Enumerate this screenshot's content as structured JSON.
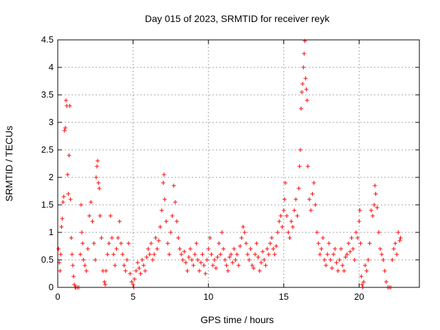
{
  "chart_data": {
    "type": "scatter",
    "title": "Day 015 of 2023, SRMTID for receiver reyk",
    "xlabel": "GPS time / hours",
    "ylabel": "SRMTID / TECUs",
    "xlim": [
      0,
      24
    ],
    "ylim": [
      0,
      4.5
    ],
    "xticks": [
      0,
      5,
      10,
      15,
      20
    ],
    "xtick_labels": [
      "0",
      "5",
      "10",
      "15",
      "20"
    ],
    "yticks": [
      0,
      0.5,
      1,
      1.5,
      2,
      2.5,
      3,
      3.5,
      4,
      4.5
    ],
    "ytick_labels": [
      "0",
      "0.5",
      "1",
      "1.5",
      "2",
      "2.5",
      "3",
      "3.5",
      "4",
      "4.5"
    ],
    "grid": true,
    "marker": "+",
    "color": "#ff0000",
    "series": [
      {
        "name": "reyk",
        "points": [
          [
            0.05,
            0.7
          ],
          [
            0.1,
            0.45
          ],
          [
            0.15,
            0.3
          ],
          [
            0.2,
            0.6
          ],
          [
            0.25,
            1.1
          ],
          [
            0.3,
            1.25
          ],
          [
            0.35,
            1.55
          ],
          [
            0.4,
            1.65
          ],
          [
            0.45,
            2.85
          ],
          [
            0.5,
            2.9
          ],
          [
            0.55,
            3.4
          ],
          [
            0.6,
            3.3
          ],
          [
            0.65,
            2.05
          ],
          [
            0.7,
            1.7
          ],
          [
            0.75,
            2.4
          ],
          [
            0.8,
            3.3
          ],
          [
            0.85,
            1.6
          ],
          [
            0.9,
            0.9
          ],
          [
            0.95,
            0.6
          ],
          [
            1.0,
            0.4
          ],
          [
            1.05,
            0.2
          ],
          [
            1.1,
            0.05
          ],
          [
            1.15,
            0.0
          ],
          [
            1.2,
            0.0
          ],
          [
            1.3,
            0.0
          ],
          [
            1.4,
            0.0
          ],
          [
            1.5,
            0.6
          ],
          [
            1.55,
            1.5
          ],
          [
            1.6,
            1.0
          ],
          [
            1.65,
            0.8
          ],
          [
            1.7,
            0.5
          ],
          [
            1.8,
            0.4
          ],
          [
            1.9,
            0.3
          ],
          [
            2.0,
            0.7
          ],
          [
            2.1,
            1.3
          ],
          [
            2.2,
            1.55
          ],
          [
            2.3,
            1.2
          ],
          [
            2.4,
            0.8
          ],
          [
            2.5,
            0.5
          ],
          [
            2.55,
            2.0
          ],
          [
            2.6,
            2.2
          ],
          [
            2.65,
            2.3
          ],
          [
            2.7,
            1.9
          ],
          [
            2.75,
            1.8
          ],
          [
            2.8,
            1.3
          ],
          [
            2.9,
            0.9
          ],
          [
            3.0,
            0.3
          ],
          [
            3.1,
            0.1
          ],
          [
            3.15,
            0.05
          ],
          [
            3.2,
            0.3
          ],
          [
            3.3,
            0.6
          ],
          [
            3.4,
            0.8
          ],
          [
            3.5,
            1.3
          ],
          [
            3.6,
            0.9
          ],
          [
            3.7,
            0.6
          ],
          [
            3.8,
            0.4
          ],
          [
            3.9,
            0.7
          ],
          [
            4.0,
            0.9
          ],
          [
            4.1,
            1.2
          ],
          [
            4.2,
            0.8
          ],
          [
            4.3,
            0.6
          ],
          [
            4.4,
            0.4
          ],
          [
            4.5,
            0.3
          ],
          [
            4.6,
            0.5
          ],
          [
            4.7,
            0.8
          ],
          [
            4.8,
            0.25
          ],
          [
            4.9,
            0.1
          ],
          [
            5.0,
            0.05
          ],
          [
            5.05,
            0.0
          ],
          [
            5.1,
            0.15
          ],
          [
            5.2,
            0.3
          ],
          [
            5.3,
            0.45
          ],
          [
            5.4,
            0.35
          ],
          [
            5.5,
            0.25
          ],
          [
            5.6,
            0.5
          ],
          [
            5.7,
            0.4
          ],
          [
            5.8,
            0.3
          ],
          [
            5.9,
            0.55
          ],
          [
            6.0,
            0.7
          ],
          [
            6.1,
            0.6
          ],
          [
            6.2,
            0.8
          ],
          [
            6.3,
            0.5
          ],
          [
            6.4,
            0.6
          ],
          [
            6.5,
            0.9
          ],
          [
            6.6,
            0.7
          ],
          [
            6.7,
            0.85
          ],
          [
            6.8,
            1.1
          ],
          [
            6.9,
            1.4
          ],
          [
            7.0,
            1.9
          ],
          [
            7.05,
            2.05
          ],
          [
            7.1,
            1.6
          ],
          [
            7.2,
            1.2
          ],
          [
            7.3,
            0.8
          ],
          [
            7.4,
            0.6
          ],
          [
            7.5,
            1.0
          ],
          [
            7.6,
            1.3
          ],
          [
            7.7,
            1.85
          ],
          [
            7.8,
            1.55
          ],
          [
            7.9,
            1.2
          ],
          [
            8.0,
            0.9
          ],
          [
            8.1,
            0.7
          ],
          [
            8.2,
            0.6
          ],
          [
            8.3,
            0.5
          ],
          [
            8.4,
            0.65
          ],
          [
            8.5,
            0.45
          ],
          [
            8.6,
            0.3
          ],
          [
            8.7,
            0.55
          ],
          [
            8.8,
            0.7
          ],
          [
            8.9,
            0.5
          ],
          [
            9.0,
            0.4
          ],
          [
            9.1,
            0.6
          ],
          [
            9.2,
            0.8
          ],
          [
            9.3,
            0.5
          ],
          [
            9.4,
            0.3
          ],
          [
            9.5,
            0.45
          ],
          [
            9.6,
            0.6
          ],
          [
            9.7,
            0.4
          ],
          [
            9.8,
            0.25
          ],
          [
            9.9,
            0.5
          ],
          [
            10.0,
            0.7
          ],
          [
            10.1,
            0.9
          ],
          [
            10.2,
            0.6
          ],
          [
            10.3,
            0.4
          ],
          [
            10.4,
            0.5
          ],
          [
            10.5,
            0.35
          ],
          [
            10.6,
            0.55
          ],
          [
            10.7,
            0.8
          ],
          [
            10.8,
            0.6
          ],
          [
            10.9,
            1.0
          ],
          [
            11.0,
            0.7
          ],
          [
            11.1,
            0.5
          ],
          [
            11.2,
            0.4
          ],
          [
            11.3,
            0.3
          ],
          [
            11.4,
            0.55
          ],
          [
            11.5,
            0.6
          ],
          [
            11.6,
            0.45
          ],
          [
            11.7,
            0.7
          ],
          [
            11.8,
            0.5
          ],
          [
            11.9,
            0.6
          ],
          [
            12.0,
            0.4
          ],
          [
            12.1,
            0.75
          ],
          [
            12.2,
            0.9
          ],
          [
            12.3,
            1.1
          ],
          [
            12.4,
            1.0
          ],
          [
            12.5,
            0.8
          ],
          [
            12.6,
            0.6
          ],
          [
            12.7,
            0.5
          ],
          [
            12.8,
            0.7
          ],
          [
            12.9,
            0.4
          ],
          [
            13.0,
            0.35
          ],
          [
            13.1,
            0.6
          ],
          [
            13.2,
            0.8
          ],
          [
            13.3,
            0.55
          ],
          [
            13.4,
            0.3
          ],
          [
            13.5,
            0.45
          ],
          [
            13.6,
            0.65
          ],
          [
            13.7,
            0.5
          ],
          [
            13.8,
            0.4
          ],
          [
            13.9,
            0.7
          ],
          [
            14.0,
            0.6
          ],
          [
            14.1,
            0.8
          ],
          [
            14.2,
            0.9
          ],
          [
            14.3,
            0.7
          ],
          [
            14.4,
            0.6
          ],
          [
            14.5,
            0.75
          ],
          [
            14.6,
            1.0
          ],
          [
            14.7,
            1.2
          ],
          [
            14.8,
            1.3
          ],
          [
            14.9,
            1.1
          ],
          [
            15.0,
            1.4
          ],
          [
            15.05,
            1.6
          ],
          [
            15.1,
            1.9
          ],
          [
            15.2,
            1.3
          ],
          [
            15.3,
            1.0
          ],
          [
            15.4,
            0.9
          ],
          [
            15.5,
            1.2
          ],
          [
            15.6,
            1.1
          ],
          [
            15.7,
            1.4
          ],
          [
            15.8,
            1.6
          ],
          [
            15.9,
            1.3
          ],
          [
            16.0,
            1.8
          ],
          [
            16.05,
            2.2
          ],
          [
            16.1,
            2.5
          ],
          [
            16.15,
            3.25
          ],
          [
            16.2,
            3.55
          ],
          [
            16.25,
            3.7
          ],
          [
            16.3,
            4.0
          ],
          [
            16.35,
            4.25
          ],
          [
            16.4,
            4.48
          ],
          [
            16.45,
            3.8
          ],
          [
            16.5,
            3.6
          ],
          [
            16.55,
            3.4
          ],
          [
            16.6,
            2.2
          ],
          [
            16.7,
            1.6
          ],
          [
            16.8,
            1.4
          ],
          [
            16.9,
            1.7
          ],
          [
            17.0,
            1.9
          ],
          [
            17.1,
            1.5
          ],
          [
            17.2,
            1.0
          ],
          [
            17.3,
            0.8
          ],
          [
            17.4,
            0.6
          ],
          [
            17.5,
            0.7
          ],
          [
            17.6,
            0.9
          ],
          [
            17.7,
            0.5
          ],
          [
            17.8,
            0.4
          ],
          [
            17.9,
            0.6
          ],
          [
            18.0,
            0.8
          ],
          [
            18.1,
            0.5
          ],
          [
            18.2,
            0.35
          ],
          [
            18.3,
            0.6
          ],
          [
            18.4,
            0.7
          ],
          [
            18.5,
            0.45
          ],
          [
            18.6,
            0.3
          ],
          [
            18.7,
            0.5
          ],
          [
            18.8,
            0.7
          ],
          [
            18.9,
            0.4
          ],
          [
            19.0,
            0.3
          ],
          [
            19.1,
            0.55
          ],
          [
            19.2,
            0.6
          ],
          [
            19.3,
            0.8
          ],
          [
            19.4,
            0.65
          ],
          [
            19.5,
            0.9
          ],
          [
            19.6,
            0.7
          ],
          [
            19.7,
            0.5
          ],
          [
            19.8,
            1.0
          ],
          [
            19.9,
            0.9
          ],
          [
            20.0,
            1.2
          ],
          [
            20.05,
            1.4
          ],
          [
            20.1,
            0.8
          ],
          [
            20.15,
            0.2
          ],
          [
            20.2,
            0.05
          ],
          [
            20.25,
            0.0
          ],
          [
            20.3,
            0.1
          ],
          [
            20.4,
            0.4
          ],
          [
            20.5,
            0.3
          ],
          [
            20.6,
            0.5
          ],
          [
            20.7,
            0.8
          ],
          [
            20.8,
            1.4
          ],
          [
            20.9,
            1.3
          ],
          [
            21.0,
            1.5
          ],
          [
            21.05,
            1.85
          ],
          [
            21.1,
            1.7
          ],
          [
            21.2,
            1.45
          ],
          [
            21.3,
            1.0
          ],
          [
            21.4,
            0.7
          ],
          [
            21.5,
            0.6
          ],
          [
            21.6,
            0.5
          ],
          [
            21.7,
            0.3
          ],
          [
            21.8,
            0.1
          ],
          [
            21.9,
            0.0
          ],
          [
            22.0,
            0.0
          ],
          [
            22.1,
            0.0
          ],
          [
            22.2,
            0.5
          ],
          [
            22.3,
            0.7
          ],
          [
            22.4,
            0.8
          ],
          [
            22.5,
            0.6
          ],
          [
            22.6,
            1.0
          ],
          [
            22.7,
            0.85
          ],
          [
            22.75,
            0.9
          ]
        ]
      }
    ]
  }
}
